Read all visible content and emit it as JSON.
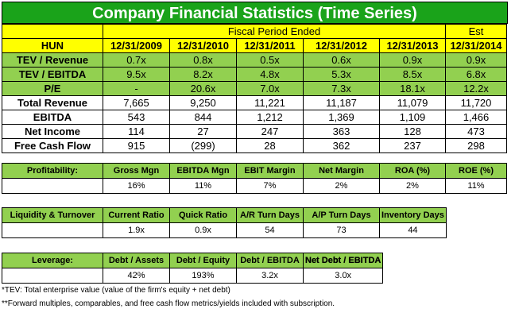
{
  "title": "Company Financial Statistics (Time Series)",
  "ticker": "HUN",
  "header": {
    "fiscal_period": "Fiscal Period Ended",
    "est": "Est",
    "years": [
      "12/31/2009",
      "12/31/2010",
      "12/31/2011",
      "12/31/2012",
      "12/31/2013",
      "12/31/2014"
    ]
  },
  "multiples": [
    {
      "label": "TEV / Revenue",
      "values": [
        "0.7x",
        "0.8x",
        "0.5x",
        "0.6x",
        "0.9x",
        "0.9x"
      ]
    },
    {
      "label": "TEV / EBITDA",
      "values": [
        "9.5x",
        "8.2x",
        "4.8x",
        "5.3x",
        "8.5x",
        "6.8x"
      ]
    },
    {
      "label": "P/E",
      "values": [
        "-",
        "20.6x",
        "7.0x",
        "7.3x",
        "18.1x",
        "12.2x"
      ]
    }
  ],
  "financials": [
    {
      "label": "Total Revenue",
      "values": [
        "7,665",
        "9,250",
        "11,221",
        "11,187",
        "11,079",
        "11,720"
      ]
    },
    {
      "label": "EBITDA",
      "values": [
        "543",
        "844",
        "1,212",
        "1,369",
        "1,109",
        "1,466"
      ]
    },
    {
      "label": "Net Income",
      "values": [
        "114",
        "27",
        "247",
        "363",
        "128",
        "473"
      ]
    },
    {
      "label": "Free Cash Flow",
      "values": [
        "915",
        "(299)",
        "28",
        "362",
        "237",
        "298"
      ]
    }
  ],
  "profitability": {
    "label": "Profitability:",
    "headers": [
      "Gross Mgn",
      "EBITDA Mgn",
      "EBIT Margin",
      "Net Margin",
      "ROA (%)",
      "ROE (%)"
    ],
    "values": [
      "16%",
      "11%",
      "7%",
      "2%",
      "2%",
      "11%"
    ]
  },
  "liquidity": {
    "label": "Liquidity & Turnover",
    "headers": [
      "Current Ratio",
      "Quick Ratio",
      "A/R Turn Days",
      "A/P Turn Days",
      "Inventory Days"
    ],
    "values": [
      "1.9x",
      "0.9x",
      "54",
      "73",
      "44"
    ]
  },
  "leverage": {
    "label": "Leverage:",
    "headers": [
      "Debt / Assets",
      "Debt / Equity",
      "Debt / EBITDA",
      "Net Debt / EBITDA"
    ],
    "values": [
      "42%",
      "193%",
      "3.2x",
      "3.0x"
    ]
  },
  "footnotes": [
    "*TEV: Total enterprise value (value of the firm's equity + net debt)",
    "**Forward multiples, comparables, and free cash flow metrics/yields included with subscription."
  ],
  "colors": {
    "title_green": "#1aa31a",
    "row_green": "#92d050",
    "header_yellow": "#ffff00"
  }
}
